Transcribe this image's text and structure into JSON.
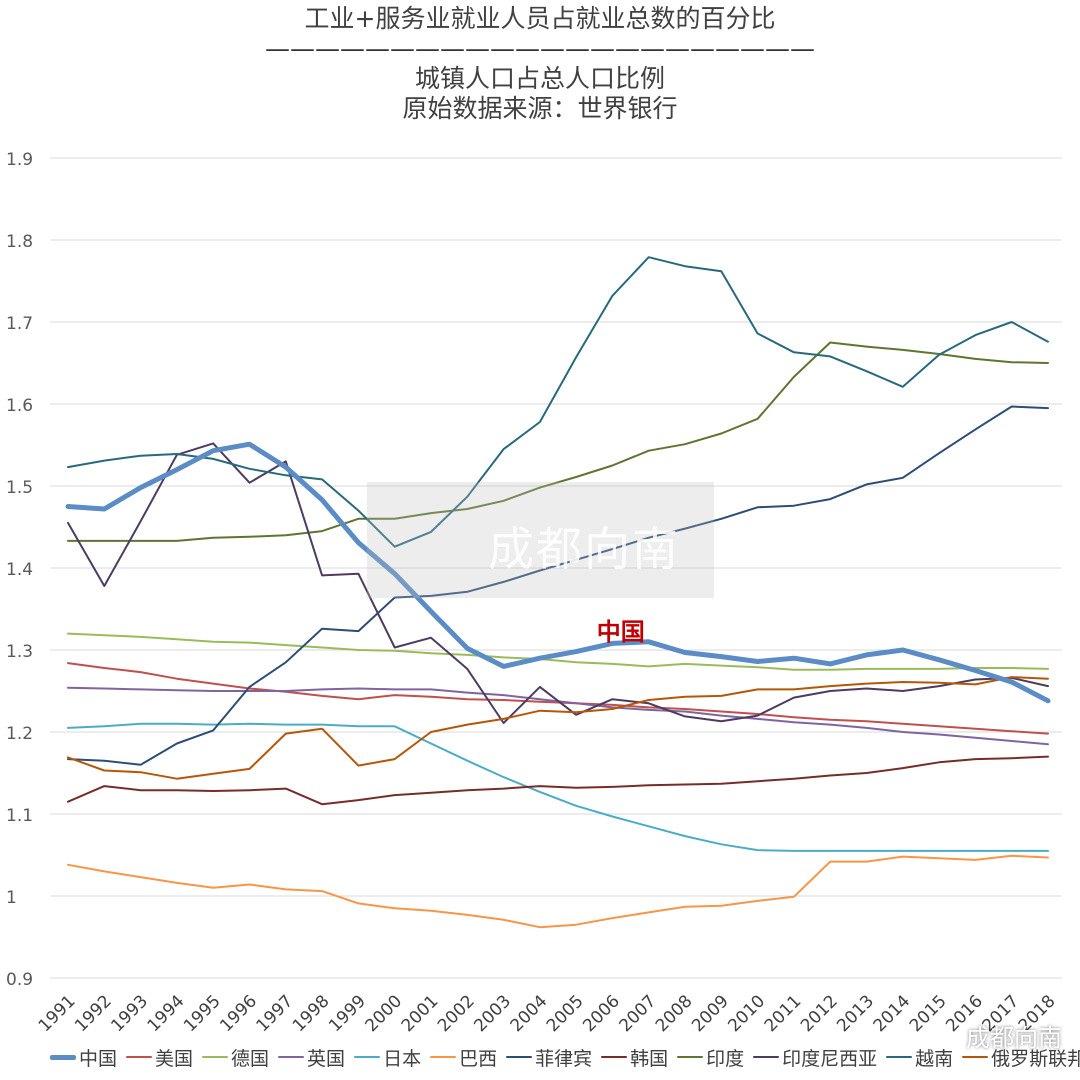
{
  "chart_data": {
    "type": "line",
    "title_lines": [
      "工业+服务业就业人员占就业总数的百分比",
      "——————————————————————",
      "城镇人口占总人口比例",
      "原始数据来源：世界银行"
    ],
    "ylim": [
      0.9,
      1.9
    ],
    "yticks": [
      "0.9",
      "1",
      "1.1",
      "1.2",
      "1.3",
      "1.4",
      "1.5",
      "1.6",
      "1.7",
      "1.8",
      "1.9"
    ],
    "ytick_values": [
      0.9,
      1.0,
      1.1,
      1.2,
      1.3,
      1.4,
      1.5,
      1.6,
      1.7,
      1.8,
      1.9
    ],
    "categories": [
      "1991",
      "1992",
      "1993",
      "1994",
      "1995",
      "1996",
      "1997",
      "1998",
      "1999",
      "2000",
      "2001",
      "2002",
      "2003",
      "2004",
      "2005",
      "2006",
      "2007",
      "2008",
      "2009",
      "2010",
      "2011",
      "2012",
      "2013",
      "2014",
      "2015",
      "2016",
      "2017",
      "2018"
    ],
    "annotation": {
      "text": "中国",
      "x": "2007",
      "y": 1.318,
      "color": "#c00000"
    },
    "series": [
      {
        "name": "中国",
        "color": "#5b8cc5",
        "width": 5,
        "values": [
          1.475,
          1.472,
          1.498,
          1.52,
          1.543,
          1.551,
          1.523,
          1.483,
          1.431,
          1.393,
          1.347,
          1.302,
          1.28,
          1.29,
          1.298,
          1.308,
          1.31,
          1.297,
          1.292,
          1.286,
          1.29,
          1.283,
          1.294,
          1.3,
          1.288,
          1.275,
          1.261,
          1.238
        ]
      },
      {
        "name": "美国",
        "color": "#c0504d",
        "width": 2,
        "values": [
          1.284,
          1.278,
          1.273,
          1.265,
          1.259,
          1.253,
          1.249,
          1.244,
          1.24,
          1.245,
          1.243,
          1.24,
          1.239,
          1.237,
          1.235,
          1.233,
          1.23,
          1.228,
          1.225,
          1.222,
          1.218,
          1.215,
          1.213,
          1.21,
          1.207,
          1.204,
          1.201,
          1.198
        ]
      },
      {
        "name": "德国",
        "color": "#9bbb59",
        "width": 2,
        "values": [
          1.32,
          1.318,
          1.316,
          1.313,
          1.31,
          1.309,
          1.306,
          1.303,
          1.3,
          1.299,
          1.296,
          1.294,
          1.291,
          1.289,
          1.285,
          1.283,
          1.28,
          1.283,
          1.281,
          1.279,
          1.276,
          1.276,
          1.277,
          1.277,
          1.277,
          1.278,
          1.278,
          1.277
        ]
      },
      {
        "name": "英国",
        "color": "#8064a2",
        "width": 2,
        "values": [
          1.254,
          1.253,
          1.252,
          1.251,
          1.25,
          1.25,
          1.25,
          1.252,
          1.253,
          1.252,
          1.252,
          1.248,
          1.245,
          1.24,
          1.235,
          1.23,
          1.227,
          1.225,
          1.22,
          1.216,
          1.212,
          1.209,
          1.205,
          1.2,
          1.197,
          1.193,
          1.189,
          1.185
        ]
      },
      {
        "name": "日本",
        "color": "#4bacc6",
        "width": 2,
        "values": [
          1.205,
          1.207,
          1.21,
          1.21,
          1.209,
          1.21,
          1.209,
          1.209,
          1.207,
          1.207,
          1.186,
          1.165,
          1.145,
          1.127,
          1.11,
          1.097,
          1.085,
          1.073,
          1.063,
          1.056,
          1.055,
          1.055,
          1.055,
          1.055,
          1.055,
          1.055,
          1.055,
          1.055
        ]
      },
      {
        "name": "巴西",
        "color": "#f79646",
        "width": 2,
        "values": [
          1.038,
          1.03,
          1.023,
          1.016,
          1.01,
          1.014,
          1.008,
          1.006,
          0.991,
          0.985,
          0.982,
          0.977,
          0.971,
          0.962,
          0.965,
          0.973,
          0.98,
          0.987,
          0.988,
          0.994,
          0.999,
          1.042,
          1.042,
          1.048,
          1.046,
          1.044,
          1.049,
          1.047
        ]
      },
      {
        "name": "菲律宾",
        "color": "#2c4d75",
        "width": 2,
        "values": [
          1.167,
          1.165,
          1.16,
          1.186,
          1.202,
          1.255,
          1.285,
          1.326,
          1.323,
          1.364,
          1.366,
          1.371,
          1.383,
          1.397,
          1.41,
          1.423,
          1.437,
          1.448,
          1.46,
          1.474,
          1.476,
          1.484,
          1.502,
          1.51,
          1.54,
          1.569,
          1.597,
          1.595
        ]
      },
      {
        "name": "韩国",
        "color": "#772c2a",
        "width": 2,
        "values": [
          1.115,
          1.134,
          1.129,
          1.129,
          1.128,
          1.129,
          1.131,
          1.112,
          1.117,
          1.123,
          1.126,
          1.129,
          1.131,
          1.134,
          1.132,
          1.133,
          1.135,
          1.136,
          1.137,
          1.14,
          1.143,
          1.147,
          1.15,
          1.156,
          1.163,
          1.167,
          1.168,
          1.17
        ]
      },
      {
        "name": "印度",
        "color": "#5f7530",
        "width": 2,
        "values": [
          1.433,
          1.433,
          1.433,
          1.433,
          1.437,
          1.438,
          1.44,
          1.445,
          1.46,
          1.46,
          1.467,
          1.472,
          1.482,
          1.498,
          1.511,
          1.525,
          1.543,
          1.551,
          1.564,
          1.582,
          1.633,
          1.675,
          1.67,
          1.666,
          1.661,
          1.655,
          1.651,
          1.65
        ]
      },
      {
        "name": "印度尼西亚",
        "color": "#4d3b62",
        "width": 2,
        "values": [
          1.455,
          1.378,
          1.457,
          1.538,
          1.552,
          1.504,
          1.53,
          1.391,
          1.393,
          1.303,
          1.315,
          1.277,
          1.211,
          1.255,
          1.221,
          1.24,
          1.235,
          1.219,
          1.213,
          1.22,
          1.242,
          1.25,
          1.253,
          1.25,
          1.256,
          1.264,
          1.266,
          1.256
        ]
      },
      {
        "name": "越南",
        "color": "#276a7c",
        "width": 2,
        "values": [
          1.523,
          1.531,
          1.537,
          1.539,
          1.533,
          1.521,
          1.513,
          1.508,
          1.47,
          1.426,
          1.444,
          1.487,
          1.545,
          1.578,
          1.657,
          1.732,
          1.779,
          1.768,
          1.762,
          1.686,
          1.663,
          1.658,
          1.64,
          1.621,
          1.66,
          1.684,
          1.7,
          1.676
        ]
      },
      {
        "name": "俄罗斯联邦",
        "color": "#b65708",
        "width": 2,
        "values": [
          1.169,
          1.153,
          1.151,
          1.143,
          1.149,
          1.155,
          1.198,
          1.204,
          1.159,
          1.167,
          1.2,
          1.209,
          1.216,
          1.226,
          1.224,
          1.228,
          1.239,
          1.243,
          1.244,
          1.252,
          1.252,
          1.256,
          1.259,
          1.261,
          1.26,
          1.258,
          1.267,
          1.265
        ]
      }
    ]
  },
  "watermark": {
    "text": "成都向南",
    "corner_text": "成都向南"
  }
}
